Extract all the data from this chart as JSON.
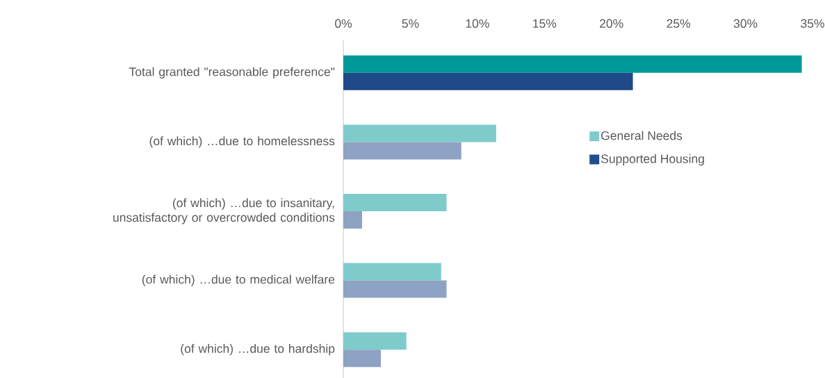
{
  "chart_data": {
    "type": "bar",
    "orientation": "horizontal",
    "categories": [
      "Total granted \"reasonable preference\"",
      "(of which) …due to homelessness",
      "(of which) …due to insanitary, unsatisfactory or overcrowded conditions",
      "(of which) …due to medical welfare",
      "(of which) …due to hardship"
    ],
    "series": [
      {
        "name": "General Needs",
        "color": "#7fcbcb",
        "colors": [
          "#009999",
          "#7fcbcb",
          "#7fcbcb",
          "#7fcbcb",
          "#7fcbcb"
        ],
        "values": [
          34.2,
          11.4,
          7.7,
          7.3,
          4.7
        ]
      },
      {
        "name": "Supported Housing",
        "color": "#1f4e8c",
        "colors": [
          "#1f4a87",
          "#8ea3c3",
          "#8ea3c3",
          "#8ea3c3",
          "#8ea3c3"
        ],
        "values": [
          21.6,
          8.8,
          1.4,
          7.7,
          2.8
        ]
      }
    ],
    "xlim": [
      0,
      35
    ],
    "xticks": [
      {
        "value": 0,
        "label": "0%"
      },
      {
        "value": 5,
        "label": "5%"
      },
      {
        "value": 10,
        "label": "10%"
      },
      {
        "value": 15,
        "label": "15%"
      },
      {
        "value": 20,
        "label": "20%"
      },
      {
        "value": 25,
        "label": "25%"
      },
      {
        "value": 30,
        "label": "30%"
      },
      {
        "value": 35,
        "label": "35%"
      }
    ],
    "grid": false,
    "legend": "right"
  }
}
